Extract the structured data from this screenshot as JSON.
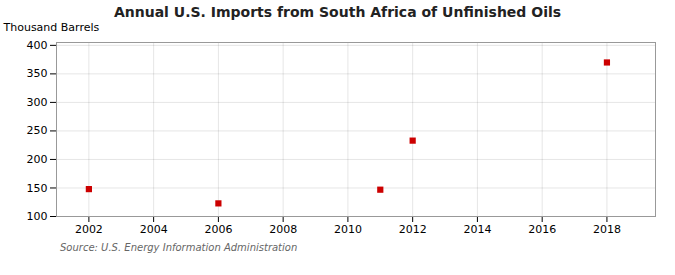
{
  "chart_data": {
    "type": "scatter",
    "title": "Annual U.S. Imports from South Africa of Unfinished Oils",
    "ylabel": "Thousand Barrels",
    "source": "Source: U.S. Energy Information Administration",
    "x": [
      2002,
      2006,
      2011,
      2012,
      2018
    ],
    "values": [
      148,
      123,
      147,
      233,
      370
    ],
    "color": "#cc0000",
    "marker": "square",
    "xlim": [
      2001.0,
      2019.5
    ],
    "ylim": [
      100,
      405
    ],
    "xticks": [
      2002,
      2004,
      2006,
      2008,
      2010,
      2012,
      2014,
      2016,
      2018
    ],
    "yticks": [
      100,
      150,
      200,
      250,
      300,
      350,
      400
    ],
    "grid": true
  }
}
